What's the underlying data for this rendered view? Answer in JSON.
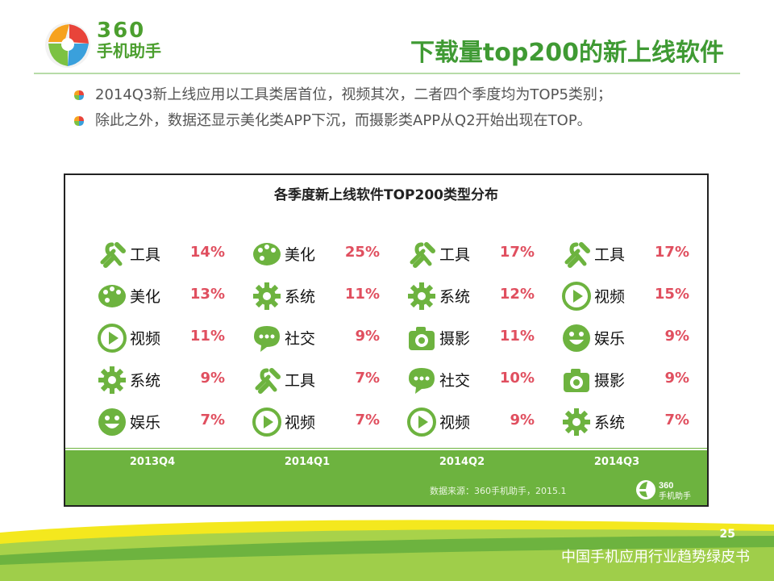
{
  "logo": {
    "number": "360",
    "name": "手机助手"
  },
  "title": "下载量top200的新上线软件",
  "bullets": [
    "2014Q3新上线应用以工具类居首位，视频其次，二者四个季度均为TOP5类别；",
    "除此之外，数据还显示美化类APP下沉，而摄影类APP从Q2开始出现在TOP。"
  ],
  "chart": {
    "title": "各季度新上线软件TOP200类型分布",
    "columns": [
      {
        "quarter": "2013Q4",
        "items": [
          {
            "name": "工具",
            "pct": "14%",
            "icon": "tools-icon"
          },
          {
            "name": "美化",
            "pct": "13%",
            "icon": "palette-icon"
          },
          {
            "name": "视频",
            "pct": "11%",
            "icon": "play-icon"
          },
          {
            "name": "系统",
            "pct": "9%",
            "icon": "gear-icon"
          },
          {
            "name": "娱乐",
            "pct": "7%",
            "icon": "smiley-icon"
          }
        ]
      },
      {
        "quarter": "2014Q1",
        "items": [
          {
            "name": "美化",
            "pct": "25%",
            "icon": "palette-icon"
          },
          {
            "name": "系统",
            "pct": "11%",
            "icon": "gear-icon"
          },
          {
            "name": "社交",
            "pct": "9%",
            "icon": "chat-icon"
          },
          {
            "name": "工具",
            "pct": "7%",
            "icon": "tools-icon"
          },
          {
            "name": "视频",
            "pct": "7%",
            "icon": "play-icon"
          }
        ]
      },
      {
        "quarter": "2014Q2",
        "items": [
          {
            "name": "工具",
            "pct": "17%",
            "icon": "tools-icon"
          },
          {
            "name": "系统",
            "pct": "12%",
            "icon": "gear-icon"
          },
          {
            "name": "摄影",
            "pct": "11%",
            "icon": "camera-icon"
          },
          {
            "name": "社交",
            "pct": "10%",
            "icon": "chat-icon"
          },
          {
            "name": "视频",
            "pct": "9%",
            "icon": "play-icon"
          }
        ]
      },
      {
        "quarter": "2014Q3",
        "items": [
          {
            "name": "工具",
            "pct": "17%",
            "icon": "tools-icon"
          },
          {
            "name": "视频",
            "pct": "15%",
            "icon": "play-icon"
          },
          {
            "name": "娱乐",
            "pct": "9%",
            "icon": "smiley-icon"
          },
          {
            "name": "摄影",
            "pct": "9%",
            "icon": "camera-icon"
          },
          {
            "name": "系统",
            "pct": "7%",
            "icon": "gear-icon"
          }
        ]
      }
    ],
    "source": "数据来源：360手机助手，2015.1"
  },
  "colors": {
    "green": "#6db33f",
    "title_green": "#3f9a33",
    "pct_red": "#e04f5f"
  },
  "page_number": "25",
  "footer": "中国手机应用行业趋势绿皮书"
}
